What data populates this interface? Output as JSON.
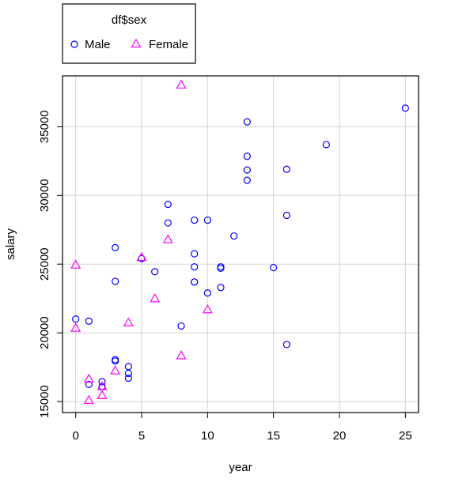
{
  "chart_data": {
    "type": "scatter",
    "title": "",
    "xlabel": "year",
    "ylabel": "salary",
    "xlim": [
      -1,
      26
    ],
    "ylim": [
      14200,
      38700
    ],
    "x_ticks": [
      0,
      5,
      10,
      15,
      20,
      25
    ],
    "x_tick_labels": [
      "0",
      "5",
      "10",
      "15",
      "20",
      "25"
    ],
    "y_ticks": [
      15000,
      20000,
      25000,
      30000,
      35000
    ],
    "y_tick_labels": [
      "15000",
      "20000",
      "25000",
      "30000",
      "35000"
    ],
    "grid": true,
    "legend": {
      "title": "df$sex",
      "placement": "top-left, outside plot",
      "entries": [
        "Male",
        "Female"
      ]
    },
    "series": [
      {
        "name": "Male",
        "marker": "circle",
        "color": "#0000ff",
        "points": [
          [
            0,
            21000
          ],
          [
            1,
            20850
          ],
          [
            1,
            16250
          ],
          [
            2,
            16450
          ],
          [
            2,
            16100
          ],
          [
            3,
            26200
          ],
          [
            3,
            23750
          ],
          [
            3,
            18050
          ],
          [
            3,
            17950
          ],
          [
            4,
            17550
          ],
          [
            4,
            17050
          ],
          [
            4,
            16700
          ],
          [
            5,
            25400
          ],
          [
            6,
            24450
          ],
          [
            7,
            29350
          ],
          [
            7,
            28000
          ],
          [
            8,
            20500
          ],
          [
            9,
            28200
          ],
          [
            9,
            25750
          ],
          [
            9,
            24800
          ],
          [
            9,
            23700
          ],
          [
            9,
            23700
          ],
          [
            10,
            28200
          ],
          [
            10,
            22900
          ],
          [
            11,
            24800
          ],
          [
            11,
            24700
          ],
          [
            11,
            23300
          ],
          [
            12,
            27050
          ],
          [
            13,
            35350
          ],
          [
            13,
            32850
          ],
          [
            13,
            31850
          ],
          [
            13,
            31100
          ],
          [
            15,
            24750
          ],
          [
            16,
            31900
          ],
          [
            16,
            28550
          ],
          [
            16,
            19150
          ],
          [
            19,
            33700
          ],
          [
            25,
            36350
          ]
        ]
      },
      {
        "name": "Female",
        "marker": "triangle",
        "color": "#ff00ff",
        "points": [
          [
            0,
            24950
          ],
          [
            0,
            20350
          ],
          [
            1,
            16650
          ],
          [
            1,
            15100
          ],
          [
            2,
            16100
          ],
          [
            2,
            15450
          ],
          [
            3,
            17250
          ],
          [
            4,
            20750
          ],
          [
            5,
            25500
          ],
          [
            6,
            22500
          ],
          [
            7,
            26800
          ],
          [
            8,
            38050
          ],
          [
            8,
            18350
          ],
          [
            10,
            21700
          ]
        ]
      }
    ]
  }
}
